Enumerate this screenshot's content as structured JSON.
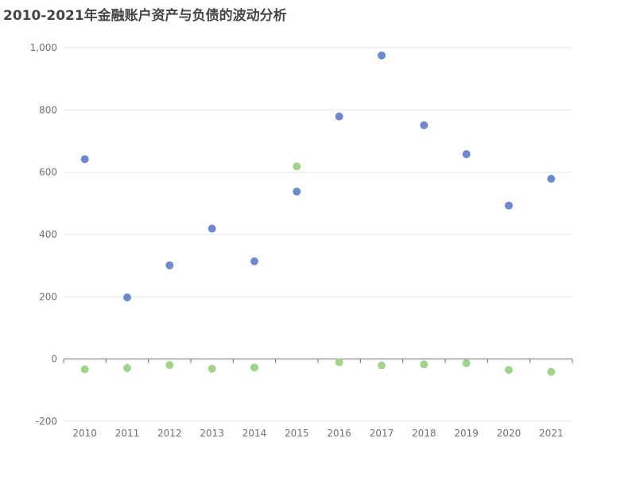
{
  "chart_data": {
    "type": "scatter",
    "title": "2010-2021年金融账户资产与负债的波动分析",
    "categories": [
      "2010",
      "2011",
      "2012",
      "2013",
      "2014",
      "2015",
      "2016",
      "2017",
      "2018",
      "2019",
      "2020",
      "2021"
    ],
    "y_ticks": [
      "-200",
      "0",
      "200",
      "400",
      "600",
      "800",
      "1,000"
    ],
    "ylim": [
      -200,
      1000
    ],
    "grid": true,
    "series": [
      {
        "color": "#7088cc",
        "values": [
          642,
          198,
          301,
          419,
          314,
          538,
          779,
          975,
          751,
          658,
          493,
          579
        ]
      },
      {
        "color": "#a1d48a",
        "values": [
          -33,
          -29,
          -19,
          -31,
          -27,
          619,
          -10,
          -20,
          -17,
          -13,
          -35,
          -41
        ]
      }
    ]
  }
}
